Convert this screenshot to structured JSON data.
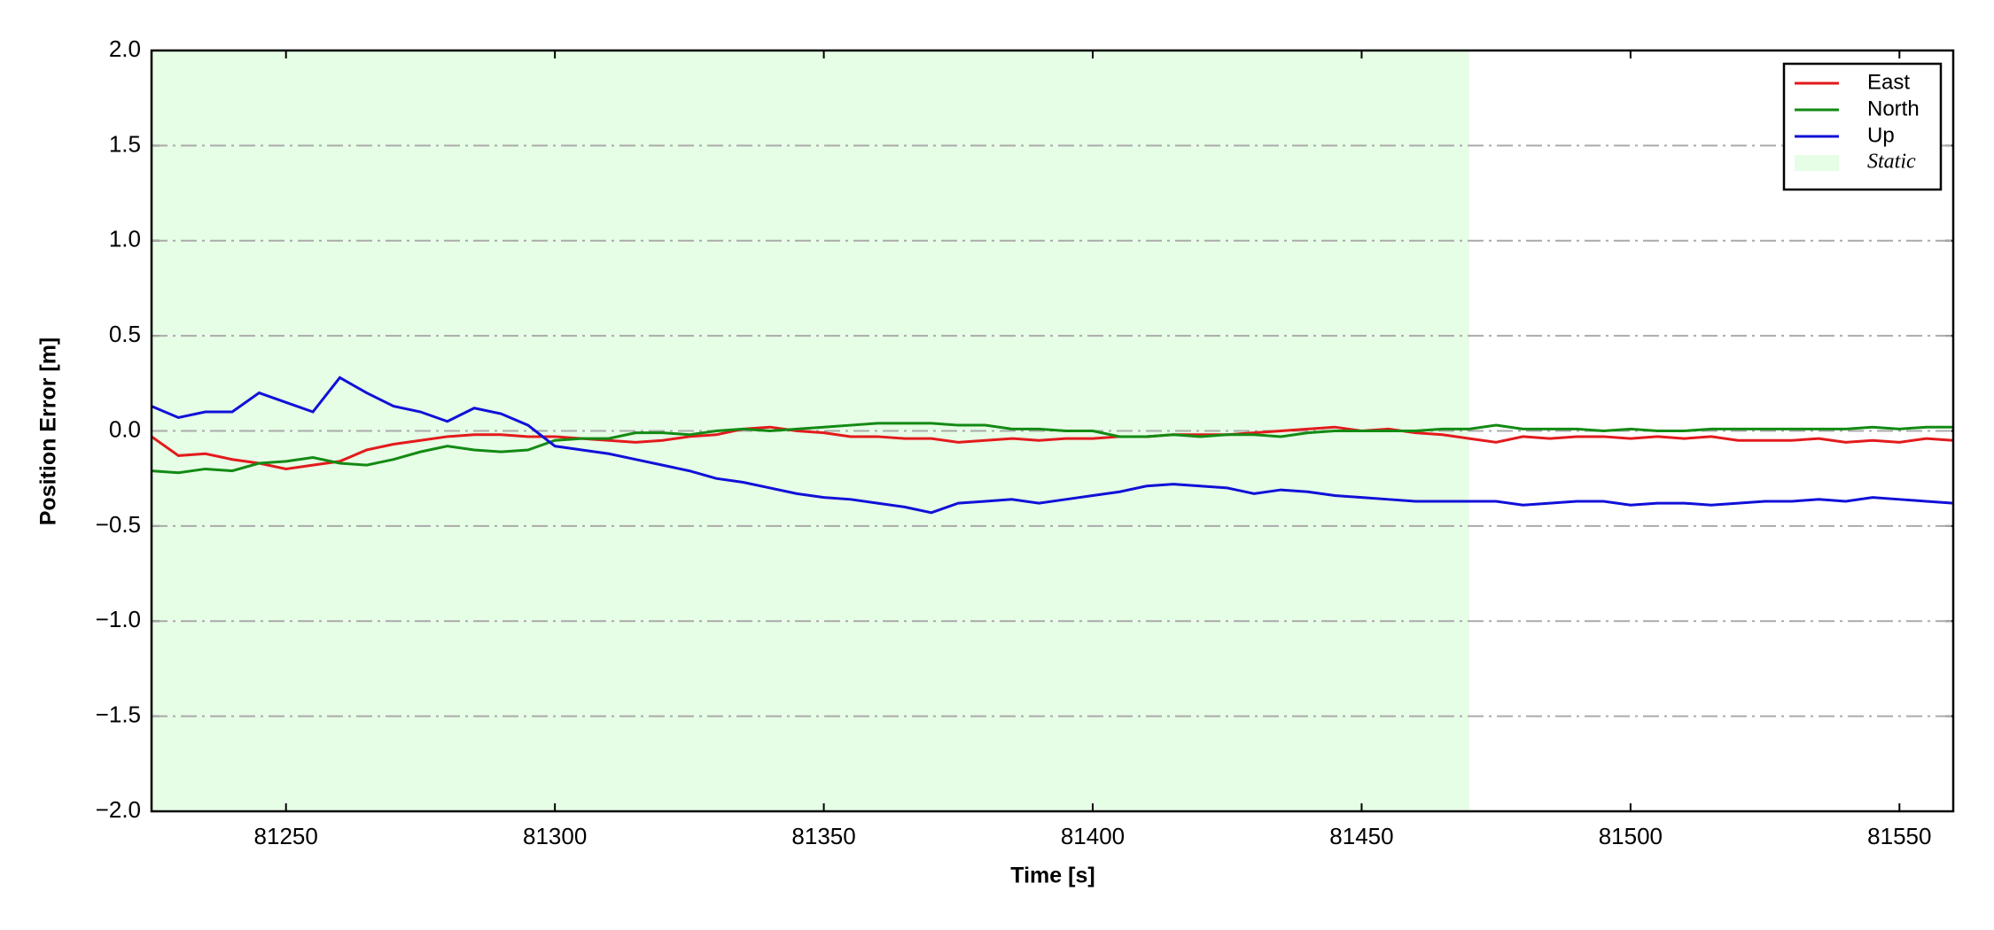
{
  "chart_data": {
    "type": "line",
    "xlabel": "Time [s]",
    "ylabel": "Position Error [m]",
    "x": [
      81225,
      81230,
      81235,
      81240,
      81245,
      81250,
      81255,
      81260,
      81265,
      81270,
      81275,
      81280,
      81285,
      81290,
      81295,
      81300,
      81305,
      81310,
      81315,
      81320,
      81325,
      81330,
      81335,
      81340,
      81345,
      81350,
      81355,
      81360,
      81365,
      81370,
      81375,
      81380,
      81385,
      81390,
      81395,
      81400,
      81405,
      81410,
      81415,
      81420,
      81425,
      81430,
      81435,
      81440,
      81445,
      81450,
      81455,
      81460,
      81465,
      81470,
      81475,
      81480,
      81485,
      81490,
      81495,
      81500,
      81505,
      81510,
      81515,
      81520,
      81525,
      81530,
      81535,
      81540,
      81545,
      81550,
      81555,
      81560
    ],
    "series": [
      {
        "name": "East",
        "color": "#e31a1c",
        "values": [
          -0.03,
          -0.13,
          -0.12,
          -0.15,
          -0.17,
          -0.2,
          -0.18,
          -0.16,
          -0.1,
          -0.07,
          -0.05,
          -0.03,
          -0.02,
          -0.02,
          -0.03,
          -0.03,
          -0.04,
          -0.05,
          -0.06,
          -0.05,
          -0.03,
          -0.02,
          0.01,
          0.02,
          0,
          -0.01,
          -0.03,
          -0.03,
          -0.04,
          -0.04,
          -0.06,
          -0.05,
          -0.04,
          -0.05,
          -0.04,
          -0.04,
          -0.03,
          -0.03,
          -0.02,
          -0.02,
          -0.02,
          -0.01,
          0,
          0.01,
          0.02,
          0,
          0.01,
          -0.01,
          -0.02,
          -0.04,
          -0.06,
          -0.03,
          -0.04,
          -0.03,
          -0.03,
          -0.04,
          -0.03,
          -0.04,
          -0.03,
          -0.05,
          -0.05,
          -0.05,
          -0.04,
          -0.06,
          -0.05,
          -0.06,
          -0.04,
          -0.05
        ]
      },
      {
        "name": "North",
        "color": "#138a13",
        "values": [
          -0.21,
          -0.22,
          -0.2,
          -0.21,
          -0.17,
          -0.16,
          -0.14,
          -0.17,
          -0.18,
          -0.15,
          -0.11,
          -0.08,
          -0.1,
          -0.11,
          -0.1,
          -0.05,
          -0.04,
          -0.04,
          -0.01,
          -0.01,
          -0.02,
          0,
          0.01,
          0,
          0.01,
          0.02,
          0.03,
          0.04,
          0.04,
          0.04,
          0.03,
          0.03,
          0.01,
          0.01,
          0,
          0,
          -0.03,
          -0.03,
          -0.02,
          -0.03,
          -0.02,
          -0.02,
          -0.03,
          -0.01,
          0,
          0,
          0,
          0,
          0.01,
          0.01,
          0.03,
          0.01,
          0.01,
          0.01,
          0,
          0.01,
          0,
          0,
          0.01,
          0.01,
          0.01,
          0.01,
          0.01,
          0.01,
          0.02,
          0.01,
          0.02,
          0.02
        ]
      },
      {
        "name": "Up",
        "color": "#1010d8",
        "values": [
          0.13,
          0.07,
          0.1,
          0.1,
          0.2,
          0.15,
          0.1,
          0.28,
          0.2,
          0.13,
          0.1,
          0.05,
          0.12,
          0.09,
          0.03,
          -0.08,
          -0.1,
          -0.12,
          -0.15,
          -0.18,
          -0.21,
          -0.25,
          -0.27,
          -0.3,
          -0.33,
          -0.35,
          -0.36,
          -0.38,
          -0.4,
          -0.43,
          -0.38,
          -0.37,
          -0.36,
          -0.38,
          -0.36,
          -0.34,
          -0.32,
          -0.29,
          -0.28,
          -0.29,
          -0.3,
          -0.33,
          -0.31,
          -0.32,
          -0.34,
          -0.35,
          -0.36,
          -0.37,
          -0.37,
          -0.37,
          -0.37,
          -0.39,
          -0.38,
          -0.37,
          -0.37,
          -0.39,
          -0.38,
          -0.38,
          -0.39,
          -0.38,
          -0.37,
          -0.37,
          -0.36,
          -0.37,
          -0.35,
          -0.36,
          -0.37,
          -0.38
        ]
      }
    ],
    "shaded_regions": [
      {
        "name": "Static",
        "color": "#e6fde6",
        "xmin": 81225,
        "xmax": 81470
      }
    ],
    "xlim": [
      81225,
      81560
    ],
    "xticks": [
      81250,
      81300,
      81350,
      81400,
      81450,
      81500,
      81550
    ],
    "ylim": [
      -2,
      2
    ],
    "yticks": [
      {
        "value": -2,
        "label": "−2.0"
      },
      {
        "value": -1.5,
        "label": "−1.5"
      },
      {
        "value": -1,
        "label": "−1.0"
      },
      {
        "value": -0.5,
        "label": "−0.5"
      },
      {
        "value": 0,
        "label": "0.0"
      },
      {
        "value": 0.5,
        "label": "0.5"
      },
      {
        "value": 1,
        "label": "1.0"
      },
      {
        "value": 1.5,
        "label": "1.5"
      },
      {
        "value": 2,
        "label": "2.0"
      }
    ],
    "grid": true,
    "legend": "upper right"
  }
}
